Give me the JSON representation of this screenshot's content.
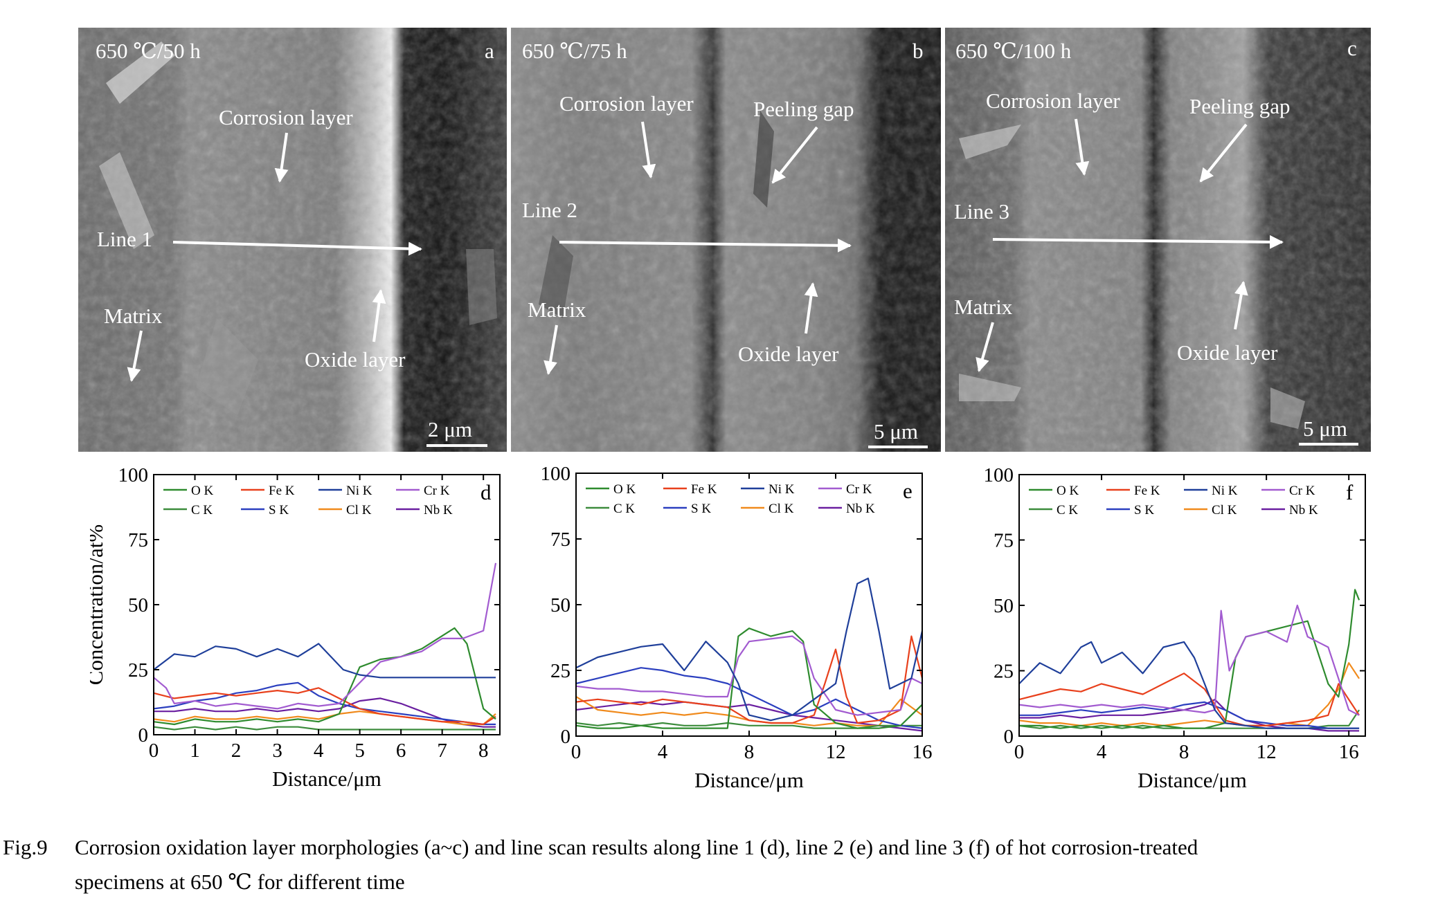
{
  "figure_number": "Fig.9",
  "caption_line1": "Corrosion oxidation layer morphologies (a~c) and line scan results along line 1 (d), line 2 (e) and line 3 (f) of hot corrosion-treated",
  "caption_line2": "specimens at 650 ℃ for different time",
  "micrographs": [
    {
      "panel": "a",
      "condition": "650 ℃/50 h",
      "scale_bar": "2 μm",
      "labels": {
        "corrosion": "Corrosion layer",
        "line": "Line 1",
        "matrix": "Matrix",
        "oxide": "Oxide layer"
      }
    },
    {
      "panel": "b",
      "condition": "650 ℃/75 h",
      "scale_bar": "5 μm",
      "labels": {
        "corrosion": "Corrosion layer",
        "gap": "Peeling gap",
        "line": "Line 2",
        "matrix": "Matrix",
        "oxide": "Oxide layer"
      }
    },
    {
      "panel": "c",
      "condition": "650 ℃/100 h",
      "scale_bar": "5 μm",
      "labels": {
        "corrosion": "Corrosion layer",
        "gap": "Peeling gap",
        "line": "Line 3",
        "matrix": "Matrix",
        "oxide": "Oxide layer"
      }
    }
  ],
  "colors": {
    "O K": "#2e8b2e",
    "Fe K": "#e8401c",
    "Ni K": "#1f3f9a",
    "Cr K": "#a25bd0",
    "C K": "#3c8c3c",
    "S K": "#2b3fbf",
    "Cl K": "#f08a1c",
    "Nb K": "#6a1fa0"
  },
  "chart_data": [
    {
      "type": "line",
      "panel": "d",
      "xlabel": "Distance/μm",
      "ylabel": "Concentration/at%",
      "xlim": [
        0,
        8.4
      ],
      "ylim": [
        0,
        100
      ],
      "xticks": [
        0,
        1,
        2,
        3,
        4,
        5,
        6,
        7,
        8
      ],
      "yticks": [
        0,
        25,
        50,
        75,
        100
      ],
      "legend": [
        "O K",
        "Fe K",
        "Ni K",
        "Cr K",
        "C K",
        "S K",
        "Cl K",
        "Nb K"
      ],
      "series": [
        {
          "name": "Ni K",
          "x": [
            0,
            0.5,
            1,
            1.5,
            2,
            2.5,
            3,
            3.5,
            4,
            4.3,
            4.6,
            5,
            5.5,
            6,
            6.5,
            7,
            7.5,
            8,
            8.3
          ],
          "y": [
            25,
            31,
            30,
            34,
            33,
            30,
            33,
            30,
            35,
            30,
            25,
            23,
            22,
            22,
            22,
            22,
            22,
            22,
            22
          ]
        },
        {
          "name": "Cr K",
          "x": [
            0,
            0.3,
            0.5,
            1,
            1.5,
            2,
            2.5,
            3,
            3.5,
            4,
            4.5,
            5,
            5.5,
            6,
            6.5,
            7,
            7.5,
            8,
            8.3
          ],
          "y": [
            22,
            18,
            12,
            13,
            11,
            12,
            11,
            10,
            12,
            11,
            12,
            20,
            28,
            30,
            32,
            37,
            37,
            40,
            66
          ]
        },
        {
          "name": "O K",
          "x": [
            0,
            0.5,
            1,
            1.5,
            2,
            2.5,
            3,
            3.5,
            4,
            4.5,
            5,
            5.5,
            6,
            6.5,
            7,
            7.3,
            7.6,
            8,
            8.3
          ],
          "y": [
            5,
            4,
            6,
            5,
            5,
            6,
            5,
            6,
            5,
            8,
            26,
            29,
            30,
            33,
            38,
            41,
            35,
            10,
            6
          ]
        },
        {
          "name": "Fe K",
          "x": [
            0,
            0.5,
            1,
            1.5,
            2,
            2.5,
            3,
            3.5,
            4,
            4.5,
            5,
            5.5,
            6,
            6.5,
            7,
            7.5,
            8,
            8.3
          ],
          "y": [
            16,
            14,
            15,
            16,
            15,
            16,
            17,
            16,
            18,
            14,
            10,
            8,
            7,
            6,
            5,
            5,
            4,
            7
          ]
        },
        {
          "name": "S K",
          "x": [
            0,
            0.5,
            1,
            1.5,
            2,
            2.5,
            3,
            3.5,
            4,
            4.5,
            5,
            5.5,
            6,
            6.5,
            7,
            7.5,
            8,
            8.3
          ],
          "y": [
            10,
            11,
            13,
            14,
            16,
            17,
            19,
            20,
            15,
            12,
            10,
            9,
            8,
            7,
            6,
            5,
            4,
            4
          ]
        },
        {
          "name": "C K",
          "x": [
            0,
            0.5,
            1,
            1.5,
            2,
            2.5,
            3,
            3.5,
            4,
            4.5,
            5,
            5.5,
            6,
            6.5,
            7,
            7.5,
            8,
            8.3
          ],
          "y": [
            3,
            2,
            3,
            2,
            3,
            2,
            3,
            3,
            2,
            2,
            2,
            2,
            2,
            2,
            2,
            2,
            2,
            2
          ]
        },
        {
          "name": "Cl K",
          "x": [
            0,
            0.5,
            1,
            1.5,
            2,
            2.5,
            3,
            3.5,
            4,
            4.5,
            5,
            5.5,
            6,
            6.5,
            7,
            7.5,
            8,
            8.3
          ],
          "y": [
            6,
            5,
            7,
            6,
            6,
            7,
            6,
            7,
            6,
            8,
            9,
            8,
            7,
            6,
            5,
            4,
            4,
            8
          ]
        },
        {
          "name": "Nb K",
          "x": [
            0,
            0.5,
            1,
            1.5,
            2,
            2.5,
            3,
            3.5,
            4,
            4.5,
            5,
            5.5,
            6,
            6.5,
            7,
            7.5,
            8,
            8.3
          ],
          "y": [
            9,
            9,
            10,
            9,
            9,
            10,
            9,
            10,
            9,
            10,
            13,
            14,
            12,
            9,
            6,
            4,
            3,
            3
          ]
        }
      ]
    },
    {
      "type": "line",
      "panel": "e",
      "xlabel": "Distance/μm",
      "ylabel": "",
      "xlim": [
        0,
        16
      ],
      "ylim": [
        0,
        100
      ],
      "xticks": [
        0,
        4,
        8,
        12,
        16
      ],
      "yticks": [
        0,
        25,
        50,
        75,
        100
      ],
      "legend": [
        "O K",
        "Fe K",
        "Ni K",
        "Cr K",
        "C K",
        "S K",
        "Cl K",
        "Nb K"
      ],
      "series": [
        {
          "name": "Ni K",
          "x": [
            0,
            1,
            2,
            3,
            4,
            5,
            6,
            7,
            7.5,
            8,
            9,
            10,
            11,
            12,
            12.5,
            13,
            13.5,
            14,
            14.5,
            15,
            15.5,
            16
          ],
          "y": [
            26,
            30,
            32,
            34,
            35,
            25,
            36,
            28,
            20,
            8,
            6,
            8,
            14,
            20,
            40,
            58,
            60,
            40,
            18,
            20,
            22,
            40
          ]
        },
        {
          "name": "Cr K",
          "x": [
            0,
            1,
            2,
            3,
            4,
            5,
            6,
            7,
            7.5,
            8,
            9,
            10,
            10.5,
            11,
            12,
            13,
            14,
            15,
            15.5,
            16
          ],
          "y": [
            19,
            18,
            18,
            17,
            17,
            16,
            15,
            15,
            30,
            36,
            37,
            38,
            35,
            22,
            10,
            8,
            9,
            10,
            22,
            20
          ]
        },
        {
          "name": "O K",
          "x": [
            0,
            1,
            2,
            3,
            4,
            5,
            6,
            7,
            7.5,
            8,
            9,
            10,
            10.5,
            11,
            12,
            13,
            14,
            15,
            16
          ],
          "y": [
            4,
            3,
            3,
            4,
            3,
            3,
            3,
            3,
            38,
            41,
            38,
            40,
            36,
            12,
            5,
            3,
            3,
            4,
            12
          ]
        },
        {
          "name": "Fe K",
          "x": [
            0,
            1,
            2,
            3,
            4,
            5,
            6,
            7,
            8,
            9,
            10,
            11,
            11.5,
            12,
            12.5,
            13,
            14,
            15,
            15.5,
            16
          ],
          "y": [
            13,
            14,
            13,
            12,
            14,
            13,
            12,
            11,
            6,
            5,
            5,
            8,
            20,
            33,
            15,
            5,
            6,
            10,
            38,
            22
          ]
        },
        {
          "name": "S K",
          "x": [
            0,
            1,
            2,
            3,
            4,
            5,
            6,
            7,
            8,
            9,
            10,
            11,
            12,
            13,
            14,
            15,
            16
          ],
          "y": [
            20,
            22,
            24,
            26,
            25,
            23,
            22,
            20,
            16,
            12,
            8,
            10,
            14,
            10,
            6,
            4,
            3
          ]
        },
        {
          "name": "C K",
          "x": [
            0,
            1,
            2,
            3,
            4,
            5,
            6,
            7,
            8,
            9,
            10,
            11,
            12,
            13,
            14,
            15,
            16
          ],
          "y": [
            5,
            4,
            5,
            4,
            5,
            4,
            4,
            5,
            4,
            4,
            4,
            3,
            3,
            3,
            4,
            4,
            4
          ]
        },
        {
          "name": "Cl K",
          "x": [
            0,
            1,
            2,
            3,
            4,
            5,
            6,
            7,
            8,
            9,
            10,
            11,
            12,
            13,
            14,
            15,
            16
          ],
          "y": [
            15,
            10,
            9,
            8,
            9,
            8,
            9,
            8,
            6,
            5,
            5,
            4,
            5,
            4,
            4,
            14,
            8
          ]
        },
        {
          "name": "Nb K",
          "x": [
            0,
            1,
            2,
            3,
            4,
            5,
            6,
            7,
            8,
            9,
            10,
            11,
            12,
            13,
            14,
            15,
            16
          ],
          "y": [
            10,
            11,
            12,
            13,
            12,
            13,
            12,
            11,
            12,
            10,
            8,
            7,
            6,
            5,
            4,
            3,
            2
          ]
        }
      ]
    },
    {
      "type": "line",
      "panel": "f",
      "xlabel": "Distance/μm",
      "ylabel": "",
      "xlim": [
        0,
        16.8
      ],
      "ylim": [
        0,
        100
      ],
      "xticks": [
        0,
        4,
        8,
        12,
        16
      ],
      "yticks": [
        0,
        25,
        50,
        75,
        100
      ],
      "legend": [
        "O K",
        "Fe K",
        "Ni K",
        "Cr K",
        "C K",
        "S K",
        "Cl K",
        "Nb K"
      ],
      "series": [
        {
          "name": "Ni K",
          "x": [
            0,
            1,
            2,
            3,
            3.5,
            4,
            5,
            6,
            7,
            8,
            8.5,
            9,
            9.5,
            10,
            11,
            12,
            13,
            14,
            15,
            16,
            16.5
          ],
          "y": [
            20,
            28,
            24,
            34,
            36,
            28,
            32,
            24,
            34,
            36,
            30,
            20,
            10,
            5,
            4,
            3,
            3,
            3,
            3,
            3,
            3
          ]
        },
        {
          "name": "Cr K",
          "x": [
            0,
            1,
            2,
            3,
            4,
            5,
            6,
            7,
            8,
            9,
            9.5,
            9.8,
            10.2,
            11,
            12,
            13,
            13.5,
            14,
            15,
            16,
            16.5
          ],
          "y": [
            12,
            11,
            12,
            11,
            12,
            11,
            12,
            11,
            10,
            9,
            10,
            48,
            25,
            38,
            40,
            36,
            50,
            38,
            34,
            10,
            8
          ]
        },
        {
          "name": "O K",
          "x": [
            0,
            1,
            2,
            3,
            4,
            5,
            6,
            7,
            8,
            9,
            10,
            10.5,
            11,
            12,
            13,
            14,
            15,
            15.5,
            16,
            16.3,
            16.5
          ],
          "y": [
            4,
            4,
            3,
            4,
            3,
            4,
            3,
            4,
            3,
            3,
            5,
            30,
            38,
            40,
            42,
            44,
            20,
            15,
            35,
            56,
            52
          ]
        },
        {
          "name": "Fe K",
          "x": [
            0,
            1,
            2,
            3,
            4,
            5,
            6,
            7,
            8,
            9,
            10,
            11,
            12,
            13,
            14,
            15,
            15.5,
            16,
            16.5
          ],
          "y": [
            14,
            16,
            18,
            17,
            20,
            18,
            16,
            20,
            24,
            18,
            6,
            4,
            4,
            5,
            6,
            8,
            20,
            14,
            8
          ]
        },
        {
          "name": "S K",
          "x": [
            0,
            1,
            2,
            3,
            4,
            5,
            6,
            7,
            8,
            9,
            10,
            11,
            12,
            13,
            14,
            15,
            16,
            16.5
          ],
          "y": [
            8,
            8,
            9,
            10,
            9,
            10,
            11,
            10,
            12,
            13,
            10,
            6,
            5,
            4,
            4,
            3,
            3,
            3
          ]
        },
        {
          "name": "C K",
          "x": [
            0,
            1,
            2,
            3,
            4,
            5,
            6,
            7,
            8,
            9,
            10,
            11,
            12,
            13,
            14,
            15,
            16,
            16.5
          ],
          "y": [
            4,
            3,
            4,
            3,
            4,
            3,
            4,
            3,
            3,
            3,
            3,
            3,
            3,
            3,
            3,
            4,
            4,
            10
          ]
        },
        {
          "name": "Cl K",
          "x": [
            0,
            1,
            2,
            3,
            4,
            5,
            6,
            7,
            8,
            9,
            10,
            11,
            12,
            13,
            14,
            15,
            15.5,
            16,
            16.5
          ],
          "y": [
            6,
            5,
            5,
            4,
            5,
            4,
            5,
            4,
            5,
            6,
            5,
            4,
            4,
            5,
            4,
            12,
            18,
            28,
            22
          ]
        },
        {
          "name": "Nb K",
          "x": [
            0,
            1,
            2,
            3,
            4,
            5,
            6,
            7,
            8,
            9,
            9.5,
            10,
            11,
            12,
            13,
            14,
            15,
            16,
            16.5
          ],
          "y": [
            7,
            7,
            8,
            7,
            8,
            8,
            8,
            9,
            10,
            12,
            14,
            10,
            6,
            4,
            3,
            3,
            2,
            2,
            2
          ]
        }
      ]
    }
  ]
}
